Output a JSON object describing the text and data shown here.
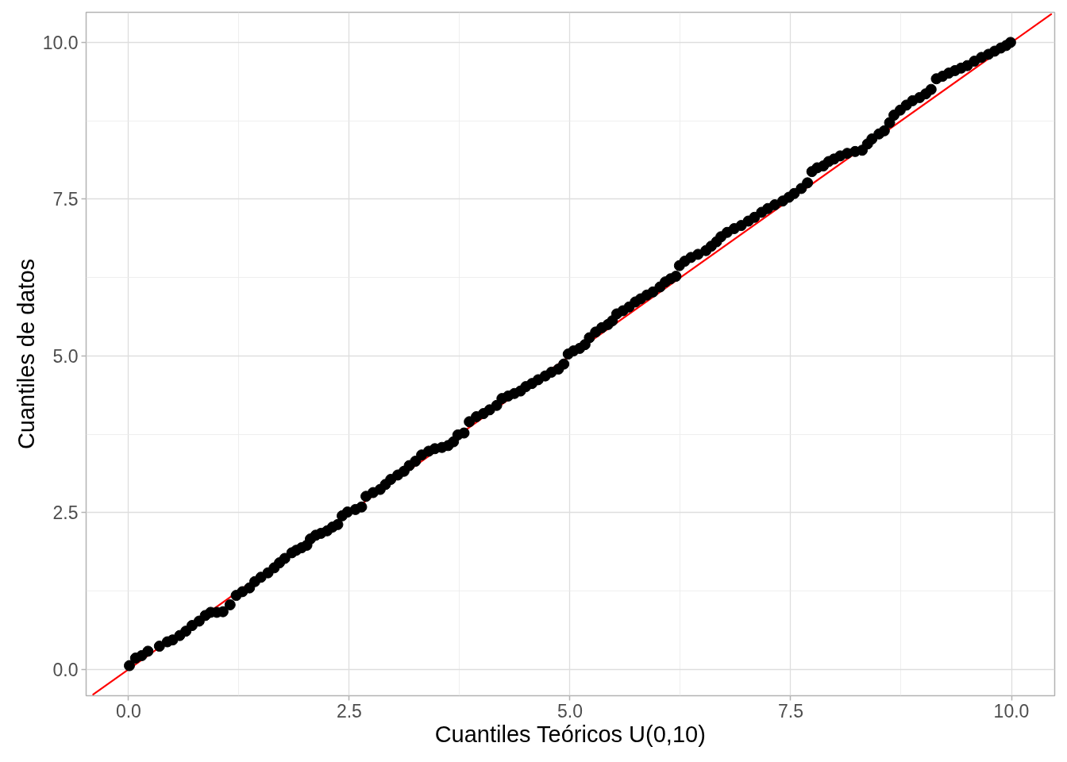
{
  "chart_data": {
    "type": "scatter",
    "xlabel": "Cuantiles Teóricos U(0,10)",
    "ylabel": "Cuantiles de datos",
    "xlim": [
      -0.48,
      10.49
    ],
    "ylim": [
      -0.42,
      10.48
    ],
    "xticks": [
      {
        "value": 0,
        "label": "0.0"
      },
      2.5,
      {
        "value": 5,
        "label": "5.0"
      },
      7.5,
      {
        "value": 10,
        "label": "10.0"
      }
    ],
    "yticks": [
      {
        "value": 0,
        "label": "0.0"
      },
      2.5,
      {
        "value": 5,
        "label": "5.0"
      },
      7.5,
      {
        "value": 10,
        "label": "10.0"
      }
    ],
    "grid": true,
    "series": [
      {
        "type": "line",
        "color": "#ff0000",
        "x": [
          -0.4,
          10.45
        ],
        "values": [
          -0.4,
          10.45
        ]
      },
      {
        "color": "#000000",
        "marker": "circle",
        "x": [
          0.01,
          0.08,
          0.15,
          0.22,
          0.35,
          0.44,
          0.5,
          0.58,
          0.65,
          0.72,
          0.8,
          0.87,
          0.93,
          1.0,
          1.07,
          1.15,
          1.22,
          1.29,
          1.37,
          1.43,
          1.5,
          1.58,
          1.65,
          1.71,
          1.77,
          1.85,
          1.9,
          1.96,
          2.02,
          2.06,
          2.12,
          2.18,
          2.25,
          2.31,
          2.37,
          2.42,
          2.48,
          2.57,
          2.64,
          2.69,
          2.77,
          2.85,
          2.91,
          2.97,
          3.05,
          3.12,
          3.18,
          3.25,
          3.32,
          3.4,
          3.47,
          3.55,
          3.62,
          3.68,
          3.73,
          3.8,
          3.86,
          3.94,
          4.02,
          4.09,
          4.17,
          4.23,
          4.3,
          4.37,
          4.44,
          4.5,
          4.57,
          4.64,
          4.72,
          4.79,
          4.87,
          4.93,
          4.98,
          5.04,
          5.11,
          5.17,
          5.22,
          5.29,
          5.36,
          5.43,
          5.48,
          5.53,
          5.6,
          5.67,
          5.74,
          5.8,
          5.87,
          5.94,
          6.02,
          6.08,
          6.14,
          6.2,
          6.24,
          6.3,
          6.37,
          6.45,
          6.54,
          6.6,
          6.66,
          6.71,
          6.78,
          6.86,
          6.94,
          7.02,
          7.09,
          7.17,
          7.24,
          7.32,
          7.41,
          7.48,
          7.54,
          7.62,
          7.69,
          7.74,
          7.8,
          7.87,
          7.93,
          7.99,
          8.06,
          8.14,
          8.23,
          8.31,
          8.37,
          8.42,
          8.5,
          8.56,
          8.62,
          8.67,
          8.74,
          8.81,
          8.88,
          8.96,
          9.03,
          9.09,
          9.15,
          9.22,
          9.29,
          9.36,
          9.43,
          9.5,
          9.58,
          9.66,
          9.74,
          9.81,
          9.88,
          9.94,
          9.99
        ],
        "values": [
          0.06,
          0.18,
          0.22,
          0.29,
          0.37,
          0.44,
          0.47,
          0.54,
          0.61,
          0.7,
          0.77,
          0.86,
          0.91,
          0.91,
          0.92,
          1.03,
          1.18,
          1.24,
          1.3,
          1.4,
          1.47,
          1.54,
          1.62,
          1.7,
          1.77,
          1.86,
          1.9,
          1.94,
          1.98,
          2.08,
          2.14,
          2.17,
          2.21,
          2.27,
          2.31,
          2.45,
          2.51,
          2.55,
          2.59,
          2.76,
          2.82,
          2.87,
          2.95,
          3.03,
          3.1,
          3.16,
          3.25,
          3.32,
          3.42,
          3.48,
          3.52,
          3.54,
          3.57,
          3.63,
          3.74,
          3.77,
          3.95,
          4.03,
          4.08,
          4.14,
          4.21,
          4.32,
          4.36,
          4.4,
          4.44,
          4.51,
          4.56,
          4.62,
          4.68,
          4.74,
          4.79,
          4.87,
          5.03,
          5.08,
          5.12,
          5.18,
          5.29,
          5.38,
          5.45,
          5.5,
          5.56,
          5.67,
          5.72,
          5.78,
          5.86,
          5.91,
          5.97,
          6.02,
          6.1,
          6.18,
          6.23,
          6.27,
          6.44,
          6.51,
          6.57,
          6.62,
          6.68,
          6.75,
          6.82,
          6.9,
          6.97,
          7.03,
          7.08,
          7.15,
          7.21,
          7.29,
          7.35,
          7.41,
          7.47,
          7.53,
          7.59,
          7.67,
          7.76,
          7.94,
          8.0,
          8.03,
          8.1,
          8.14,
          8.19,
          8.23,
          8.26,
          8.28,
          8.38,
          8.46,
          8.54,
          8.59,
          8.72,
          8.84,
          8.92,
          9.0,
          9.07,
          9.12,
          9.18,
          9.25,
          9.42,
          9.46,
          9.51,
          9.55,
          9.59,
          9.63,
          9.7,
          9.76,
          9.81,
          9.86,
          9.91,
          9.95,
          10.0
        ]
      }
    ]
  }
}
